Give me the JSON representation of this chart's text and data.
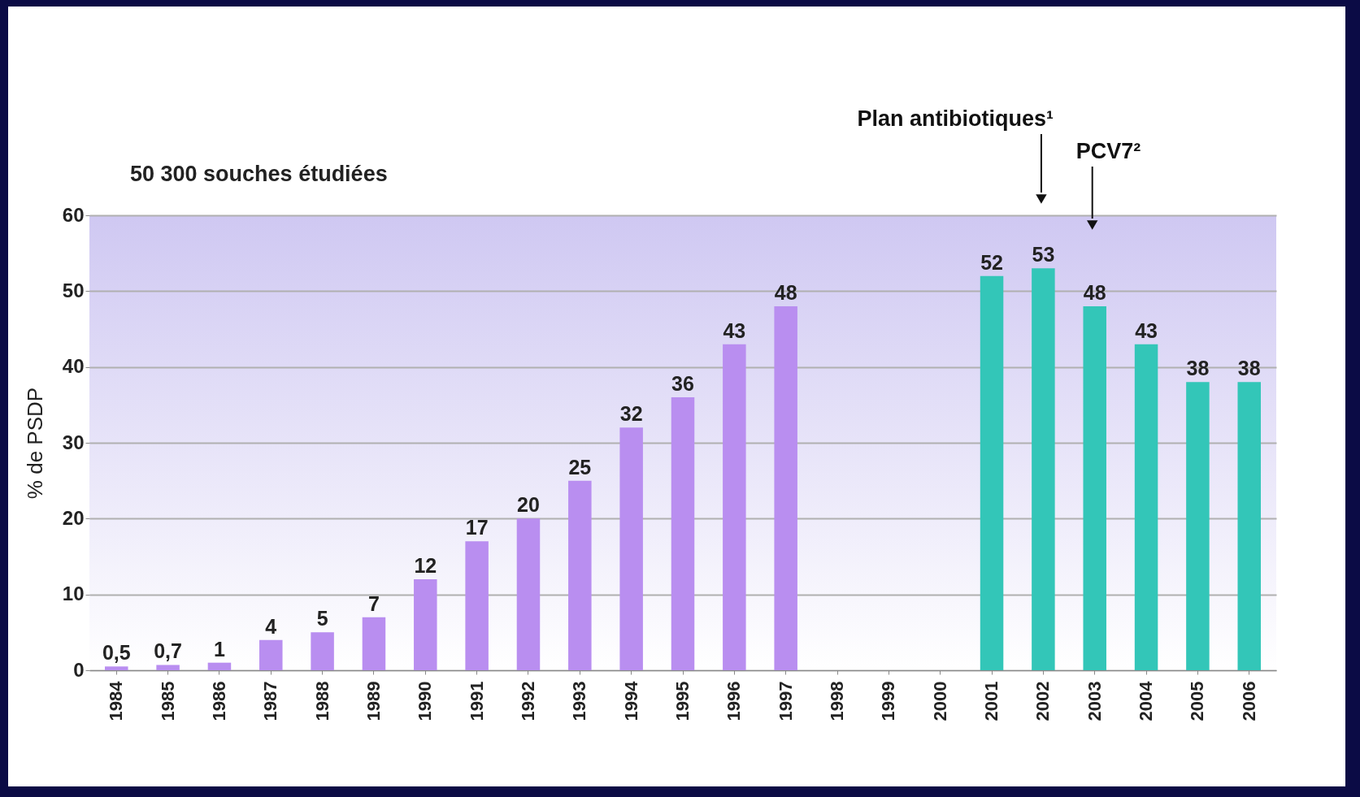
{
  "chart_data": {
    "type": "bar",
    "ylabel": "% de PSDP",
    "categories": [
      "1984",
      "1985",
      "1986",
      "1987",
      "1988",
      "1989",
      "1990",
      "1991",
      "1992",
      "1993",
      "1994",
      "1995",
      "1996",
      "1997",
      "1998",
      "1999",
      "2000",
      "2001",
      "2002",
      "2003",
      "2004",
      "2005",
      "2006"
    ],
    "values": [
      0.5,
      0.7,
      1,
      4,
      5,
      7,
      12,
      17,
      20,
      25,
      32,
      36,
      43,
      48,
      null,
      null,
      null,
      52,
      53,
      48,
      43,
      38,
      38
    ],
    "colors": [
      "#b98ef0",
      "#b98ef0",
      "#b98ef0",
      "#b98ef0",
      "#b98ef0",
      "#b98ef0",
      "#b98ef0",
      "#b98ef0",
      "#b98ef0",
      "#b98ef0",
      "#b98ef0",
      "#b98ef0",
      "#b98ef0",
      "#b98ef0",
      "#b98ef0",
      "#b98ef0",
      "#b98ef0",
      "#33c6b8",
      "#33c6b8",
      "#33c6b8",
      "#33c6b8",
      "#33c6b8",
      "#33c6b8"
    ],
    "value_labels": [
      "0,5",
      "0,7",
      "1",
      "4",
      "5",
      "7",
      "12",
      "17",
      "20",
      "25",
      "32",
      "36",
      "43",
      "48",
      null,
      null,
      null,
      "52",
      "53",
      "48",
      "43",
      "38",
      "38"
    ],
    "ylim": [
      0,
      60
    ],
    "yticks": [
      0,
      10,
      20,
      30,
      40,
      50,
      60
    ],
    "grid": "y",
    "annotations": [
      "50 300 souches étudiées",
      "Plan antibiotiques¹",
      "PCV7²"
    ]
  }
}
